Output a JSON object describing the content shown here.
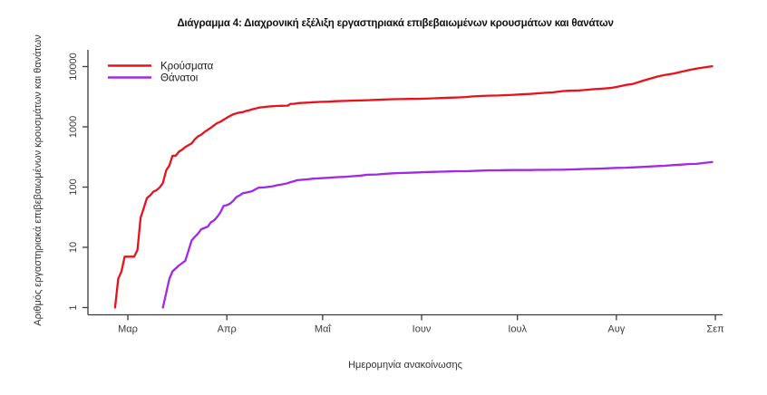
{
  "chart_data": {
    "type": "line",
    "title": "Διάγραμμα 4: Διαχρονική εξέλιξη εργαστηριακά επιβεβαιωμένων κρουσμάτων και θανάτων",
    "xlabel": "Ημερομηνία ανακοίνωσης",
    "ylabel": "Αριθμός εργαστηριακά επιβεβαιωμένων κρουσμάτων και θανάτων",
    "y_axis_type": "log10",
    "grid": false,
    "legend_position": "top-left",
    "axis_color": "#3a3a3a",
    "y_ticks": [
      1,
      10,
      100,
      1000,
      10000
    ],
    "y_tick_labels": [
      "1",
      "10",
      "100",
      "1000",
      "10000"
    ],
    "x_tick_labels": [
      "Μαρ",
      "Απρ",
      "Μαΐ",
      "Ιουν",
      "Ιουλ",
      "Αυγ",
      "Σεπ"
    ],
    "x_ticks_days": [
      0,
      31,
      61,
      92,
      122,
      153,
      184
    ],
    "x_unit": "days since 1 March 2020 (date of announcement)",
    "x_range_days": [
      -5,
      186
    ],
    "y_range": [
      1,
      12000
    ],
    "series": [
      {
        "name": "Κρούσματα",
        "color": "#e8111c",
        "x": [
          -4,
          -3,
          -2,
          -1,
          0,
          2,
          3,
          4,
          5,
          6,
          7,
          8,
          9,
          10,
          11,
          12,
          13,
          14,
          15,
          16,
          17,
          18,
          19,
          20,
          21,
          22,
          23,
          24,
          25,
          26,
          27,
          28,
          29,
          30,
          31,
          32,
          33,
          34,
          35,
          36,
          37,
          38,
          39,
          40,
          41,
          42,
          43,
          44,
          45,
          46,
          47,
          48,
          50,
          51,
          52,
          53,
          54,
          55,
          56,
          57,
          58,
          59,
          60,
          63,
          65,
          68,
          70,
          73,
          75,
          78,
          80,
          83,
          85,
          88,
          91,
          93,
          96,
          98,
          101,
          103,
          106,
          108,
          111,
          113,
          116,
          118,
          121,
          123,
          126,
          128,
          131,
          133,
          136,
          138,
          141,
          143,
          146,
          148,
          151,
          153,
          156,
          158,
          161,
          163,
          166,
          168,
          171,
          173,
          176,
          178,
          181,
          183
        ],
        "values": [
          1,
          3,
          4,
          7,
          7,
          7,
          9,
          31,
          45,
          66,
          73,
          84,
          89,
          99,
          117,
          190,
          228,
          331,
          331,
          387,
          418,
          464,
          495,
          530,
          624,
          695,
          743,
          821,
          892,
          966,
          1061,
          1156,
          1212,
          1314,
          1415,
          1514,
          1613,
          1673,
          1735,
          1755,
          1832,
          1884,
          1955,
          2011,
          2081,
          2114,
          2145,
          2170,
          2192,
          2207,
          2224,
          2235,
          2245,
          2401,
          2408,
          2463,
          2490,
          2506,
          2517,
          2534,
          2566,
          2576,
          2591,
          2620,
          2663,
          2691,
          2716,
          2744,
          2770,
          2810,
          2840,
          2874,
          2882,
          2906,
          2915,
          2937,
          2980,
          3009,
          3049,
          3068,
          3121,
          3203,
          3256,
          3287,
          3310,
          3343,
          3409,
          3458,
          3519,
          3589,
          3672,
          3732,
          3910,
          3964,
          4007,
          4077,
          4227,
          4279,
          4401,
          4587,
          4974,
          5123,
          5749,
          6177,
          6858,
          7222,
          7684,
          8138,
          8819,
          9280,
          9800,
          10134
        ]
      },
      {
        "name": "Θάνατοι",
        "color": "#a028e8",
        "x": [
          11,
          13,
          14,
          16,
          18,
          20,
          21,
          22,
          23,
          25,
          26,
          27,
          28,
          29,
          30,
          31,
          32,
          33,
          34,
          35,
          36,
          37,
          38,
          39,
          40,
          41,
          43,
          44,
          45,
          46,
          47,
          48,
          49,
          50,
          51,
          52,
          53,
          55,
          56,
          57,
          58,
          59,
          60,
          63,
          65,
          68,
          70,
          73,
          75,
          78,
          80,
          83,
          85,
          88,
          91,
          93,
          96,
          98,
          101,
          103,
          106,
          108,
          111,
          113,
          116,
          118,
          121,
          123,
          126,
          128,
          131,
          133,
          136,
          138,
          141,
          143,
          146,
          148,
          151,
          153,
          156,
          158,
          161,
          163,
          166,
          168,
          171,
          173,
          176,
          178,
          181,
          183
        ],
        "values": [
          1,
          3,
          4,
          5,
          6,
          13,
          15,
          17,
          20,
          22,
          26,
          28,
          32,
          38,
          49,
          50,
          53,
          59,
          68,
          73,
          79,
          81,
          83,
          86,
          92,
          98,
          99,
          101,
          102,
          105,
          108,
          110,
          113,
          116,
          121,
          125,
          130,
          133,
          134,
          136,
          138,
          139,
          140,
          143,
          146,
          148,
          151,
          155,
          160,
          162,
          165,
          169,
          171,
          173,
          175,
          177,
          179,
          180,
          182,
          183,
          183,
          185,
          188,
          190,
          190,
          191,
          192,
          192,
          192,
          193,
          193,
          194,
          194,
          196,
          198,
          200,
          201,
          203,
          206,
          208,
          210,
          212,
          216,
          219,
          223,
          226,
          232,
          235,
          242,
          243,
          254,
          260
        ]
      }
    ]
  }
}
